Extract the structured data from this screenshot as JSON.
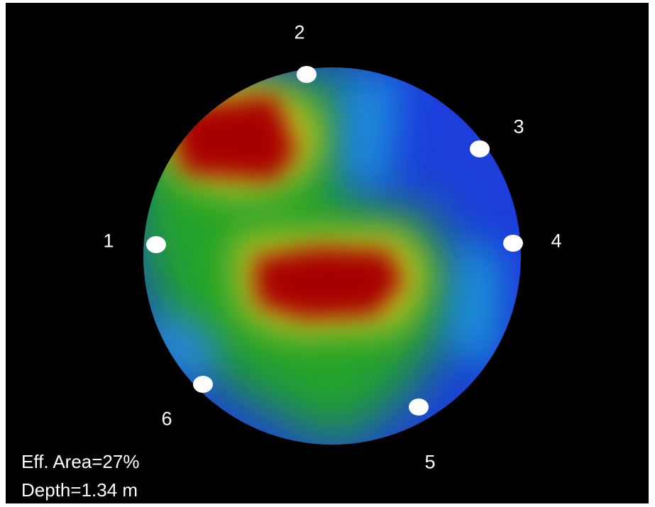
{
  "readout": {
    "eff_area": "Eff. Area=27%",
    "depth": "Depth=1.34 m"
  },
  "sensors": [
    {
      "id": "1",
      "label": "1"
    },
    {
      "id": "2",
      "label": "2"
    },
    {
      "id": "3",
      "label": "3"
    },
    {
      "id": "4",
      "label": "4"
    },
    {
      "id": "5",
      "label": "5"
    },
    {
      "id": "6",
      "label": "6"
    }
  ],
  "colors": {
    "background": "#000000",
    "high": "#a80000",
    "mid": "#1fa32a",
    "low": "#1d3fe0",
    "sensor": "#ffffff"
  }
}
